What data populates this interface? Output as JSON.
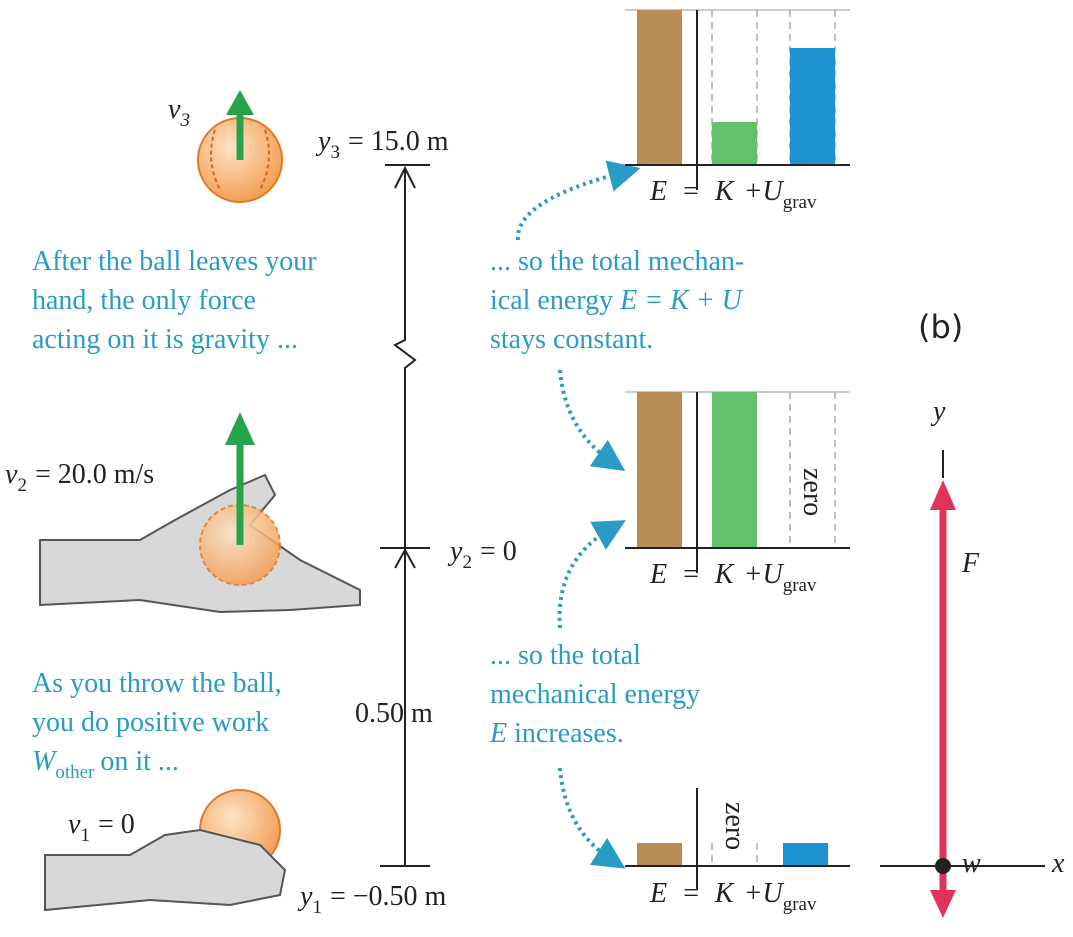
{
  "positions": [
    {
      "speed_symbol": "v",
      "speed_sub": "3",
      "height_symbol": "y",
      "height_sub": "3",
      "height_value": "= 15.0 m"
    },
    {
      "speed_symbol": "v",
      "speed_sub": "2",
      "speed_value": "= 20.0 m/s",
      "height_symbol": "y",
      "height_sub": "2",
      "height_value": "= 0"
    },
    {
      "speed_symbol": "v",
      "speed_sub": "1",
      "speed_value": "= 0",
      "height_symbol": "y",
      "height_sub": "1",
      "height_value": "= −0.50 m"
    }
  ],
  "distance_label": "0.50 m",
  "captions": {
    "gravity": [
      "After the ball leaves your",
      "hand, the only force",
      "acting on it is gravity ..."
    ],
    "throw": {
      "lines": [
        "As you throw the ball,",
        "you do positive work"
      ],
      "work_symbol": "W",
      "work_sub": "other",
      "work_tail": "on it ..."
    },
    "constant": {
      "line1": "... so the total mechan-",
      "line2_start": "ical energy",
      "equation": "E = K + U",
      "line3": "stays constant."
    },
    "increase": {
      "lines": [
        "... so the total",
        "mechanical energy"
      ],
      "energy_symbol": "E",
      "tail": "increases."
    }
  },
  "bar_charts": [
    {
      "equation": {
        "E": "E",
        "equals": "=",
        "K": "K",
        "U": "+U",
        "U_sub": "grav"
      }
    },
    {
      "equation": {
        "E": "E",
        "equals": "=",
        "K": "K",
        "U": "+U",
        "U_sub": "grav"
      },
      "zero": "zero"
    },
    {
      "equation": {
        "E": "E",
        "equals": "=",
        "K": "K",
        "U": "+U",
        "U_sub": "grav"
      },
      "zero": "zero"
    }
  ],
  "panel_b": {
    "label": "(b)",
    "y_axis": "y",
    "x_axis": "x",
    "force_up": "F",
    "force_down": "w"
  }
}
